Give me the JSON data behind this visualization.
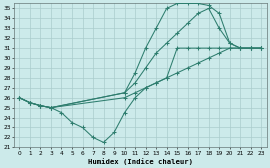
{
  "xlabel": "Humidex (Indice chaleur)",
  "bg_color": "#cceaea",
  "grid_color": "#aacccc",
  "line_color": "#2e7d6e",
  "ylim": [
    21,
    35.5
  ],
  "xlim": [
    -0.5,
    23.5
  ],
  "yticks": [
    21,
    22,
    23,
    24,
    25,
    26,
    27,
    28,
    29,
    30,
    31,
    32,
    33,
    34,
    35
  ],
  "xticks": [
    0,
    1,
    2,
    3,
    4,
    5,
    6,
    7,
    8,
    9,
    10,
    11,
    12,
    13,
    14,
    15,
    16,
    17,
    18,
    19,
    20,
    21,
    22,
    23
  ],
  "curves": [
    {
      "x": [
        0,
        1,
        2,
        3,
        10,
        11,
        12,
        13,
        14,
        15,
        16,
        17,
        18,
        19,
        20,
        21,
        22,
        23
      ],
      "y": [
        26,
        25.5,
        25.2,
        25,
        26.5,
        28.5,
        31,
        33,
        35,
        35.5,
        35.5,
        35.5,
        35.3,
        34.5,
        31.5,
        31,
        31,
        31
      ]
    },
    {
      "x": [
        0,
        1,
        2,
        3,
        10,
        11,
        12,
        13,
        14,
        15,
        16,
        17,
        18,
        19,
        20,
        21,
        22,
        23
      ],
      "y": [
        26,
        25.5,
        25.2,
        25,
        26.5,
        27.5,
        29,
        30.5,
        31.5,
        32.5,
        33.5,
        34.5,
        35,
        33,
        31.5,
        31,
        31,
        31
      ]
    },
    {
      "x": [
        0,
        1,
        2,
        3,
        10,
        11,
        12,
        13,
        14,
        15,
        16,
        17,
        18,
        19,
        20,
        21,
        22,
        23
      ],
      "y": [
        26,
        25.5,
        25.2,
        25,
        26,
        26.5,
        27,
        27.5,
        28,
        28.5,
        29,
        29.5,
        30,
        30.5,
        31,
        31,
        31,
        31
      ]
    },
    {
      "x": [
        0,
        1,
        2,
        3,
        4,
        5,
        6,
        7,
        8,
        9,
        10,
        11,
        12,
        13,
        14,
        15,
        16,
        17,
        18,
        19,
        20,
        21,
        22,
        23
      ],
      "y": [
        26,
        25.5,
        25.2,
        25,
        24.5,
        23.5,
        23,
        22,
        21.5,
        22.5,
        24.5,
        26,
        27,
        27.5,
        28,
        31,
        31,
        31,
        31,
        31,
        31,
        31,
        31,
        31
      ]
    }
  ]
}
